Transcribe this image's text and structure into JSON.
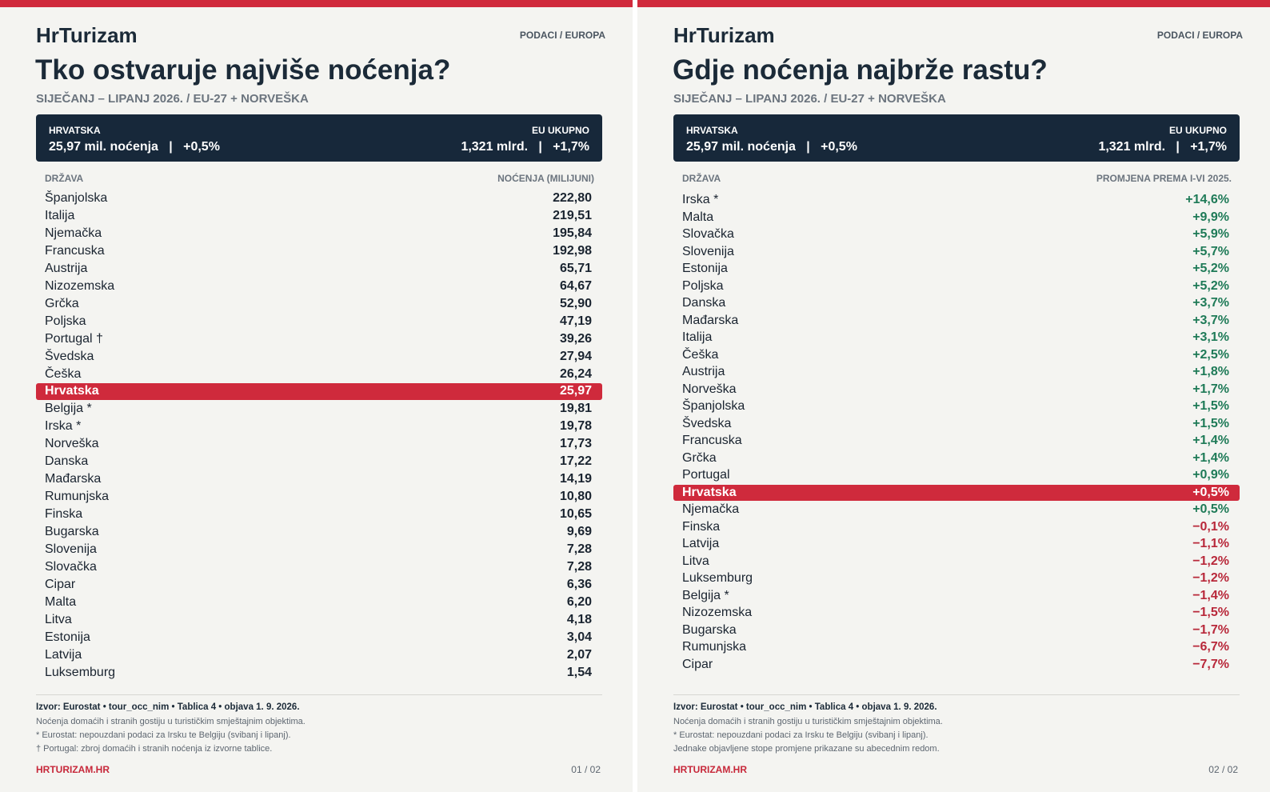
{
  "page1": {
    "brand": "HrTurizam",
    "tag": "PODACI / EUROPA",
    "title": "Tko ostvaruje najviše noćenja?",
    "subtitle": "SIJEČANJ – LIPANJ 2026.   /   EU-27 + NORVEŠKA",
    "summary": {
      "left_label": "HRVATSKA",
      "left_value": "25,97 mil. noćenja   |   +0,5%",
      "right_label": "EU UKUPNO",
      "right_value": "1,321 mlrd.   |   +1,7%"
    },
    "col_country": "DRŽAVA",
    "col_value": "NOĆENJA (MILIJUNI)",
    "rows": [
      {
        "name": "Španjolska",
        "value": "222,80"
      },
      {
        "name": "Italija",
        "value": "219,51"
      },
      {
        "name": "Njemačka",
        "value": "195,84"
      },
      {
        "name": "Francuska",
        "value": "192,98"
      },
      {
        "name": "Austrija",
        "value": "65,71"
      },
      {
        "name": "Nizozemska",
        "value": "64,67"
      },
      {
        "name": "Grčka",
        "value": "52,90"
      },
      {
        "name": "Poljska",
        "value": "47,19"
      },
      {
        "name": "Portugal †",
        "value": "39,26"
      },
      {
        "name": "Švedska",
        "value": "27,94"
      },
      {
        "name": "Češka",
        "value": "26,24"
      },
      {
        "name": "Hrvatska",
        "value": "25,97",
        "highlight": true
      },
      {
        "name": "Belgija *",
        "value": "19,81"
      },
      {
        "name": "Irska *",
        "value": "19,78"
      },
      {
        "name": "Norveška",
        "value": "17,73"
      },
      {
        "name": "Danska",
        "value": "17,22"
      },
      {
        "name": "Mađarska",
        "value": "14,19"
      },
      {
        "name": "Rumunjska",
        "value": "10,80"
      },
      {
        "name": "Finska",
        "value": "10,65"
      },
      {
        "name": "Bugarska",
        "value": "9,69"
      },
      {
        "name": "Slovenija",
        "value": "7,28"
      },
      {
        "name": "Slovačka",
        "value": "7,28"
      },
      {
        "name": "Cipar",
        "value": "6,36"
      },
      {
        "name": "Malta",
        "value": "6,20"
      },
      {
        "name": "Litva",
        "value": "4,18"
      },
      {
        "name": "Estonija",
        "value": "3,04"
      },
      {
        "name": "Latvija",
        "value": "2,07"
      },
      {
        "name": "Luksemburg",
        "value": "1,54"
      }
    ],
    "source": "Izvor: Eurostat • tour_occ_nim • Tablica 4 • objava 1. 9. 2026.",
    "notes": [
      "Noćenja domaćih i stranih gostiju u turističkim smještajnim objektima.",
      "* Eurostat: nepouzdani podaci za Irsku te Belgiju (svibanj i lipanj).",
      "† Portugal: zbroj domaćih i stranih noćenja iz izvorne tablice."
    ],
    "site": "HRTURIZAM.HR",
    "page_number": "01 / 02"
  },
  "page2": {
    "brand": "HrTurizam",
    "tag": "PODACI / EUROPA",
    "title": "Gdje noćenja najbrže rastu?",
    "subtitle": "SIJEČANJ – LIPANJ 2026.   /   EU-27 + NORVEŠKA",
    "summary": {
      "left_label": "HRVATSKA",
      "left_value": "25,97 mil. noćenja   |   +0,5%",
      "right_label": "EU UKUPNO",
      "right_value": "1,321 mlrd.   |   +1,7%"
    },
    "col_country": "DRŽAVA",
    "col_value": "PROMJENA PREMA I-VI 2025.",
    "colors": {
      "positive": "#1e7a57",
      "negative": "#b8283a",
      "accent": "#cf2a3c"
    },
    "rows": [
      {
        "name": "Irska *",
        "value": "+14,6%"
      },
      {
        "name": "Malta",
        "value": "+9,9%"
      },
      {
        "name": "Slovačka",
        "value": "+5,9%"
      },
      {
        "name": "Slovenija",
        "value": "+5,7%"
      },
      {
        "name": "Estonija",
        "value": "+5,2%"
      },
      {
        "name": "Poljska",
        "value": "+5,2%"
      },
      {
        "name": "Danska",
        "value": "+3,7%"
      },
      {
        "name": "Mađarska",
        "value": "+3,7%"
      },
      {
        "name": "Italija",
        "value": "+3,1%"
      },
      {
        "name": "Češka",
        "value": "+2,5%"
      },
      {
        "name": "Austrija",
        "value": "+1,8%"
      },
      {
        "name": "Norveška",
        "value": "+1,7%"
      },
      {
        "name": "Španjolska",
        "value": "+1,5%"
      },
      {
        "name": "Švedska",
        "value": "+1,5%"
      },
      {
        "name": "Francuska",
        "value": "+1,4%"
      },
      {
        "name": "Grčka",
        "value": "+1,4%"
      },
      {
        "name": "Portugal",
        "value": "+0,9%"
      },
      {
        "name": "Hrvatska",
        "value": "+0,5%",
        "highlight": true
      },
      {
        "name": "Njemačka",
        "value": "+0,5%"
      },
      {
        "name": "Finska",
        "value": "−0,1%"
      },
      {
        "name": "Latvija",
        "value": "−1,1%"
      },
      {
        "name": "Litva",
        "value": "−1,2%"
      },
      {
        "name": "Luksemburg",
        "value": "−1,2%"
      },
      {
        "name": "Belgija *",
        "value": "−1,4%"
      },
      {
        "name": "Nizozemska",
        "value": "−1,5%"
      },
      {
        "name": "Bugarska",
        "value": "−1,7%"
      },
      {
        "name": "Rumunjska",
        "value": "−6,7%"
      },
      {
        "name": "Cipar",
        "value": "−7,7%"
      }
    ],
    "source": "Izvor: Eurostat • tour_occ_nim • Tablica 4 • objava 1. 9. 2026.",
    "notes": [
      "Noćenja domaćih i stranih gostiju u turističkim smještajnim objektima.",
      "* Eurostat: nepouzdani podaci za Irsku te Belgiju (svibanj i lipanj).",
      "Jednake objavljene stope promjene prikazane su abecednim redom."
    ],
    "site": "HRTURIZAM.HR",
    "page_number": "02 / 02"
  }
}
